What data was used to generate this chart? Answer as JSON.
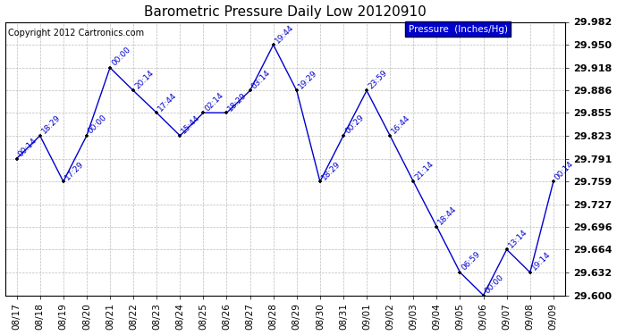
{
  "title": "Barometric Pressure Daily Low 20120910",
  "copyright": "Copyright 2012 Cartronics.com",
  "legend_label": "Pressure  (Inches/Hg)",
  "x_labels": [
    "08/17",
    "08/18",
    "08/19",
    "08/20",
    "08/21",
    "08/22",
    "08/23",
    "08/24",
    "08/25",
    "08/26",
    "08/27",
    "08/28",
    "08/29",
    "08/30",
    "08/31",
    "09/01",
    "09/02",
    "09/03",
    "09/04",
    "09/05",
    "09/06",
    "09/07",
    "09/08",
    "09/09"
  ],
  "y_values": [
    29.791,
    29.823,
    29.759,
    29.823,
    29.918,
    29.886,
    29.855,
    29.823,
    29.855,
    29.855,
    29.886,
    29.95,
    29.886,
    29.759,
    29.823,
    29.886,
    29.823,
    29.759,
    29.696,
    29.632,
    29.6,
    29.664,
    29.632,
    29.759
  ],
  "point_labels": [
    "00:14",
    "18:29",
    "17:29",
    "00:00",
    "00:00",
    "20:14",
    "17:44",
    "15:44",
    "02:14",
    "18:29",
    "03:14",
    "19:44",
    "19:29",
    "18:29",
    "00:29",
    "23:59",
    "16:44",
    "21:14",
    "18:44",
    "06:59",
    "00:00",
    "13:14",
    "19:14",
    "00:14"
  ],
  "ylim_min": 29.6,
  "ylim_max": 29.982,
  "yticks": [
    29.6,
    29.632,
    29.664,
    29.696,
    29.727,
    29.759,
    29.791,
    29.823,
    29.855,
    29.886,
    29.918,
    29.95,
    29.982
  ],
  "line_color": "#0000CC",
  "marker_color": "#000000",
  "bg_color": "#FFFFFF",
  "grid_color": "#AAAAAA",
  "label_color": "#0000CC",
  "title_color": "#000000",
  "legend_bg": "#0000CC",
  "legend_text_color": "#FFFFFF"
}
